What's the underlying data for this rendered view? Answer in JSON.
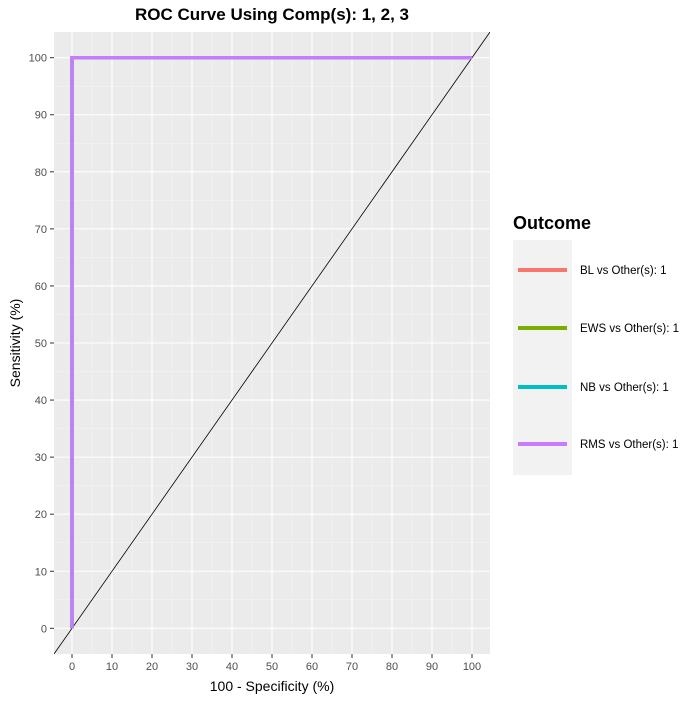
{
  "chart_data": {
    "type": "line",
    "title": "ROC Curve Using Comp(s): 1, 2, 3",
    "xlabel": "100 - Specificity (%)",
    "ylabel": "Sensitivity (%)",
    "xlim": [
      -4.5,
      104.5
    ],
    "ylim": [
      -4.5,
      104.5
    ],
    "x_ticks": [
      0,
      10,
      20,
      30,
      40,
      50,
      60,
      70,
      80,
      90,
      100
    ],
    "y_ticks": [
      0,
      10,
      20,
      30,
      40,
      50,
      60,
      70,
      80,
      90,
      100
    ],
    "grid": true,
    "legend": {
      "title": "Outcome",
      "position": "right"
    },
    "series": [
      {
        "name": "BL vs Other(s): 1",
        "color": "#F8766D",
        "points": [
          [
            0,
            0
          ],
          [
            0,
            100
          ],
          [
            100,
            100
          ]
        ]
      },
      {
        "name": "EWS vs Other(s): 1",
        "color": "#7CAE00",
        "points": [
          [
            0,
            0
          ],
          [
            0,
            100
          ],
          [
            100,
            100
          ]
        ]
      },
      {
        "name": "NB vs Other(s): 1",
        "color": "#00BFC4",
        "points": [
          [
            0,
            0
          ],
          [
            0,
            100
          ],
          [
            100,
            100
          ]
        ]
      },
      {
        "name": "RMS vs Other(s): 1",
        "color": "#C77CFF",
        "points": [
          [
            0,
            0
          ],
          [
            0,
            100
          ],
          [
            100,
            100
          ]
        ]
      }
    ],
    "reference_line": {
      "slope": 1,
      "intercept": 0,
      "color": "#000000"
    }
  },
  "colors": {
    "panel_background": "#EBEBEB",
    "grid_major": "#FFFFFF",
    "grid_minor": "#F5F5F5",
    "legend_key_background": "#F2F2F2"
  }
}
